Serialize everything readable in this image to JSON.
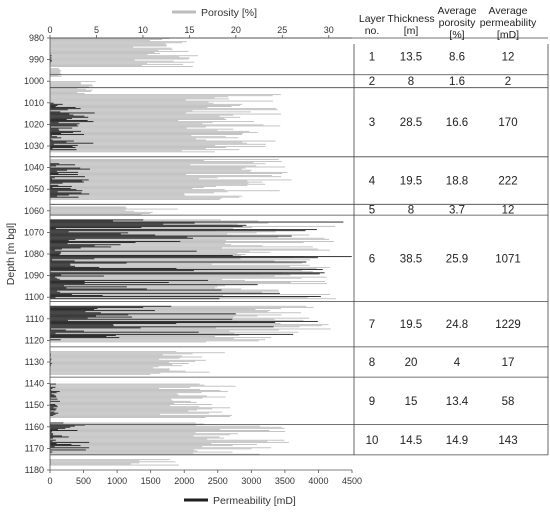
{
  "chart_data": {
    "type": "bar",
    "orientation": "horizontal",
    "ylabel": "Depth [m bgl]",
    "y_ticks": [
      980,
      990,
      1000,
      1010,
      1020,
      1030,
      1040,
      1050,
      1060,
      1070,
      1080,
      1090,
      1100,
      1110,
      1120,
      1130,
      1140,
      1150,
      1160,
      1170,
      1180
    ],
    "ylim": [
      980,
      1180
    ],
    "y_inverted": true,
    "top_axis": {
      "label": "Porosity [%]",
      "ticks": [
        0,
        5,
        10,
        15,
        20,
        25,
        30
      ],
      "lim": [
        0,
        32.5
      ]
    },
    "bottom_axis": {
      "label": "Permeability [mD]",
      "ticks": [
        0,
        500,
        1000,
        1500,
        2000,
        2500,
        3000,
        3500,
        4000,
        4500
      ],
      "lim": [
        0,
        4500
      ]
    },
    "series": [
      {
        "name": "Porosity [%]",
        "color": "#bdbdbd",
        "axis": "top",
        "segments": [
          {
            "from": 980,
            "to": 993.5,
            "max": 16
          },
          {
            "from": 994,
            "to": 998,
            "max": 1.5
          },
          {
            "from": 1000,
            "to": 1006,
            "max": 5
          },
          {
            "from": 1006,
            "to": 1033,
            "max": 25
          },
          {
            "from": 1036,
            "to": 1055,
            "max": 26
          },
          {
            "from": 1058,
            "to": 1062,
            "max": 14
          },
          {
            "from": 1064,
            "to": 1101,
            "max": 31
          },
          {
            "from": 1104,
            "to": 1121,
            "max": 30.5
          },
          {
            "from": 1125,
            "to": 1136,
            "max": 19
          },
          {
            "from": 1140,
            "to": 1156,
            "max": 20
          },
          {
            "from": 1158,
            "to": 1173,
            "max": 26
          },
          {
            "from": 1175,
            "to": 1178,
            "max": 14
          }
        ]
      },
      {
        "name": "Permeability [mD]",
        "color": "#1e1e1e",
        "axis": "bottom",
        "segments": [
          {
            "from": 987,
            "to": 992,
            "max": 40
          },
          {
            "from": 1010,
            "to": 1032,
            "max": 680
          },
          {
            "from": 1038,
            "to": 1054,
            "max": 620
          },
          {
            "from": 1064,
            "to": 1101,
            "max": 4500
          },
          {
            "from": 1104,
            "to": 1120,
            "max": 4200
          },
          {
            "from": 1126,
            "to": 1132,
            "max": 30
          },
          {
            "from": 1140,
            "to": 1155,
            "max": 150
          },
          {
            "from": 1158,
            "to": 1172,
            "max": 600
          },
          {
            "from": 1175,
            "to": 1178,
            "max": 10
          }
        ]
      }
    ],
    "layer_boundaries": [
      980,
      997,
      1003,
      1035,
      1057,
      1062,
      1102,
      1123,
      1137,
      1159,
      1173
    ]
  },
  "table": {
    "headers": [
      [
        "Layer",
        "no."
      ],
      [
        "Thickness",
        "[m]"
      ],
      [
        "Average",
        "porosity",
        "[%]"
      ],
      [
        "Average",
        "permeability",
        "[mD]"
      ]
    ],
    "rows": [
      [
        "1",
        "13.5",
        "8.6",
        "12"
      ],
      [
        "2",
        "8",
        "1.6",
        "2"
      ],
      [
        "3",
        "28.5",
        "16.6",
        "170"
      ],
      [
        "4",
        "19.5",
        "18.8",
        "222"
      ],
      [
        "5",
        "8",
        "3.7",
        "12"
      ],
      [
        "6",
        "38.5",
        "25.9",
        "1071"
      ],
      [
        "7",
        "19.5",
        "24.8",
        "1229"
      ],
      [
        "8",
        "20",
        "4",
        "17"
      ],
      [
        "9",
        "15",
        "13.4",
        "58"
      ],
      [
        "10",
        "14.5",
        "14.9",
        "143"
      ]
    ]
  }
}
